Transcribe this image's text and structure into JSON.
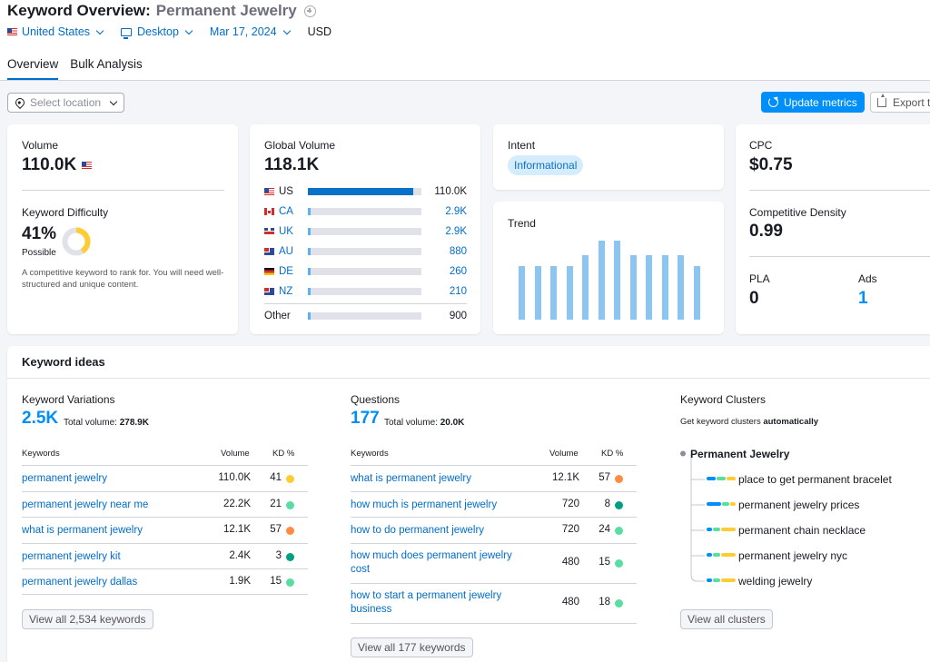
{
  "header": {
    "title": "Keyword Overview:",
    "keyword": "Permanent Jewelry",
    "filters": {
      "country": "United States",
      "device": "Desktop",
      "date": "Mar 17, 2024",
      "currency": "USD"
    },
    "tabs": [
      "Overview",
      "Bulk Analysis"
    ]
  },
  "toolbar": {
    "location_placeholder": "Select location",
    "update_label": "Update metrics",
    "export_label": "Export t"
  },
  "volume_card": {
    "volume_label": "Volume",
    "volume_value": "110.0K",
    "kd_label": "Keyword Difficulty",
    "kd_value": "41%",
    "kd_percent": 41,
    "kd_level": "Possible",
    "kd_description": "A competitive keyword to rank for. You will need well-structured and unique content."
  },
  "global_volume": {
    "label": "Global Volume",
    "value": "118.1K",
    "countries": [
      {
        "code": "US",
        "value": "110.0K",
        "share": 0.93
      },
      {
        "code": "CA",
        "value": "2.9K",
        "share": 0.025
      },
      {
        "code": "UK",
        "value": "2.9K",
        "share": 0.025
      },
      {
        "code": "AU",
        "value": "880",
        "share": 0.008
      },
      {
        "code": "DE",
        "value": "260",
        "share": 0.003
      },
      {
        "code": "NZ",
        "value": "210",
        "share": 0.002
      }
    ],
    "other_label": "Other",
    "other_value": "900",
    "other_share": 0.008
  },
  "intent": {
    "label": "Intent",
    "value": "Informational"
  },
  "trend": {
    "label": "Trend",
    "values": [
      0.68,
      0.68,
      0.68,
      0.68,
      0.82,
      1.0,
      1.0,
      0.82,
      0.82,
      0.82,
      0.82,
      0.68
    ]
  },
  "cpc_card": {
    "cpc_label": "CPC",
    "cpc_value": "$0.75",
    "density_label": "Competitive Density",
    "density_value": "0.99",
    "pla_label": "PLA",
    "pla_value": "0",
    "ads_label": "Ads",
    "ads_value": "1"
  },
  "keyword_ideas": {
    "title": "Keyword ideas",
    "columns_labels": {
      "keywords": "Keywords",
      "volume": "Volume",
      "kd": "KD %"
    },
    "variations": {
      "title": "Keyword Variations",
      "count": "2.5K",
      "total_label": "Total volume:",
      "total_value": "278.9K",
      "rows": [
        {
          "keyword": "permanent jewelry",
          "volume": "110.0K",
          "kd": "41",
          "color": "#ffcc33"
        },
        {
          "keyword": "permanent jewelry near me",
          "volume": "22.2K",
          "kd": "21",
          "color": "#59dda0"
        },
        {
          "keyword": "what is permanent jewelry",
          "volume": "12.1K",
          "kd": "57",
          "color": "#ff8c43"
        },
        {
          "keyword": "permanent jewelry kit",
          "volume": "2.4K",
          "kd": "3",
          "color": "#009f81"
        },
        {
          "keyword": "permanent jewelry dallas",
          "volume": "1.9K",
          "kd": "15",
          "color": "#59dda0"
        }
      ],
      "view_all": "View all 2,534 keywords"
    },
    "questions": {
      "title": "Questions",
      "count": "177",
      "total_label": "Total volume:",
      "total_value": "20.0K",
      "rows": [
        {
          "keyword": "what is permanent jewelry",
          "volume": "12.1K",
          "kd": "57",
          "color": "#ff8c43"
        },
        {
          "keyword": "how much is permanent jewelry",
          "volume": "720",
          "kd": "8",
          "color": "#009f81"
        },
        {
          "keyword": "how to do permanent jewelry",
          "volume": "720",
          "kd": "24",
          "color": "#59dda0"
        },
        {
          "keyword": "how much does permanent jewelry cost",
          "volume": "480",
          "kd": "15",
          "color": "#59dda0"
        },
        {
          "keyword": "how to start a permanent jewelry business",
          "volume": "480",
          "kd": "18",
          "color": "#59dda0"
        }
      ],
      "view_all": "View all 177 keywords"
    },
    "clusters": {
      "title": "Keyword Clusters",
      "subtitle": "Get keyword clusters",
      "subtitle_bold": "automatically",
      "root": "Permanent Jewelry",
      "items": [
        "place to get permanent bracelet",
        "permanent jewelry prices",
        "permanent chain necklace",
        "permanent jewelry nyc",
        "welding jewelry"
      ],
      "view_all": "View all clusters"
    }
  },
  "colors": {
    "accent": "#008ff8",
    "link": "#006dca",
    "kd_ring": "#ffcc33"
  }
}
